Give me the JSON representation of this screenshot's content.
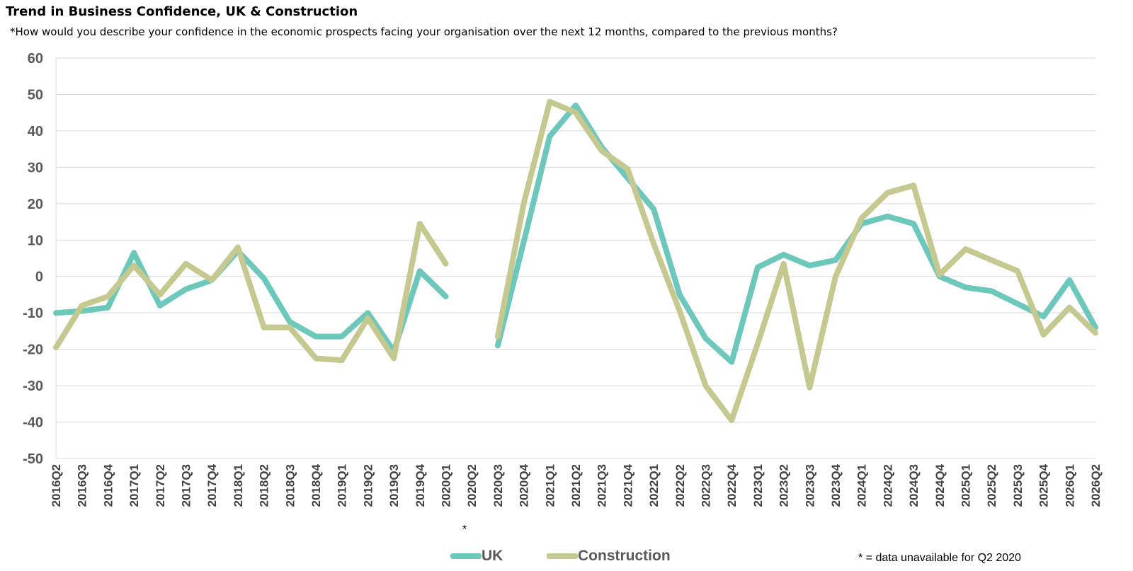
{
  "chart_data": {
    "type": "line",
    "title": "Trend in Business Confidence, UK & Construction",
    "subtitle": "*How would you describe your confidence in the economic prospects facing your organisation over the next 12 months, compared to the previous months?",
    "categories": [
      "2016Q2",
      "2016Q3",
      "2016Q4",
      "2017Q1",
      "2017Q2",
      "2017Q3",
      "2017Q4",
      "2018Q1",
      "2018Q2",
      "2018Q3",
      "2018Q4",
      "2019Q1",
      "2019Q2",
      "2019Q3",
      "2019Q4",
      "2020Q1",
      "2020Q2",
      "2020Q3",
      "2020Q4",
      "2021Q1",
      "2021Q2",
      "2021Q3",
      "2021Q4",
      "2022Q1",
      "2022Q2",
      "2022Q3",
      "2022Q4",
      "2023Q1",
      "2023Q2",
      "2023Q3",
      "2023Q4",
      "2024Q1",
      "2024Q2",
      "2024Q3",
      "2024Q4",
      "2025Q1",
      "2025Q2",
      "2025Q3",
      "2025Q4",
      "2026Q1",
      "2026Q2"
    ],
    "yticks": [
      "60",
      "50",
      "40",
      "30",
      "20",
      "10",
      "0",
      "-10",
      "-20",
      "-30",
      "-40",
      "-50"
    ],
    "ylim": [
      -50,
      60
    ],
    "grid": true,
    "legend_position": "bottom",
    "series": [
      {
        "name": "UK",
        "color": "#6DC8BC",
        "values": [
          -10,
          -9.5,
          -8.5,
          6.5,
          -8,
          -3.5,
          -1,
          7,
          -0.5,
          -12.5,
          -16.5,
          -16.5,
          -10,
          -20.5,
          1.5,
          -5.5,
          null,
          -19,
          9.5,
          38.5,
          47,
          35.5,
          27,
          18.5,
          -5,
          -17,
          -23.5,
          2.5,
          6,
          3,
          4.5,
          14.5,
          16.5,
          14.5,
          0,
          -3,
          -4,
          -7.5,
          -11,
          -1,
          -14
        ]
      },
      {
        "name": "Construction",
        "color": "#C5C98F",
        "values": [
          -19.5,
          -8,
          -5.5,
          3,
          -5,
          3.5,
          -1,
          8,
          -14,
          -14,
          -22.5,
          -23,
          -11.5,
          -22.5,
          14.5,
          3.5,
          null,
          -16.5,
          20,
          48,
          45,
          34.5,
          29.5,
          9,
          -9.5,
          -30,
          -39.5,
          -18.5,
          3.5,
          -30.5,
          0,
          16,
          23,
          25,
          0.5,
          7.5,
          4.5,
          1.5,
          -16,
          -8.5,
          -15.5
        ]
      }
    ],
    "star_marker": "*",
    "note": "* = data unavailable for Q2 2020"
  }
}
